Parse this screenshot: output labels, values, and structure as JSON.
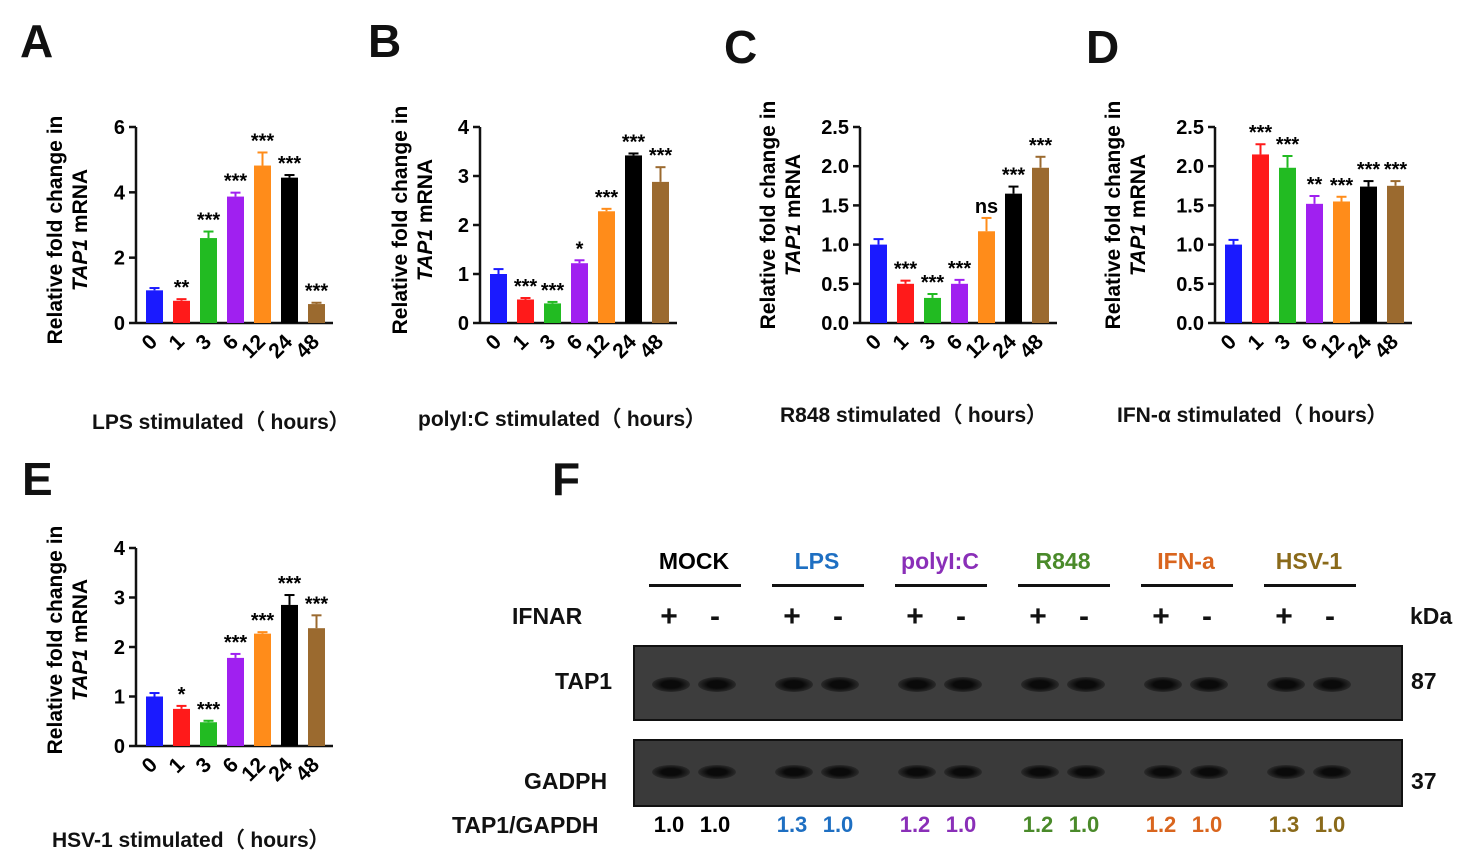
{
  "chart_data": [
    {
      "type": "bar",
      "panel": "A",
      "ylabel_line1": "Relative fold change in",
      "ylabel_gene": "TAP1",
      "ylabel_suffix": " mRNA",
      "xlabel": "LPS stimulated（ hours）",
      "categories": [
        "0",
        "1",
        "3",
        "6",
        "12",
        "24",
        "48"
      ],
      "values": [
        1.0,
        0.68,
        2.6,
        3.87,
        4.82,
        4.45,
        0.58
      ],
      "errors": [
        0.07,
        0.05,
        0.2,
        0.12,
        0.4,
        0.08,
        0.04
      ],
      "significance": [
        "",
        "**",
        "***",
        "***",
        "***",
        "***",
        "***"
      ],
      "ylim": [
        0,
        6
      ],
      "yticks": [
        "0",
        "2",
        "4",
        "6"
      ]
    },
    {
      "type": "bar",
      "panel": "B",
      "ylabel_line1": "Relative fold change in",
      "ylabel_gene": "TAP1",
      "ylabel_suffix": " mRNA",
      "xlabel": "polyI:C stimulated（ hours）",
      "categories": [
        "0",
        "1",
        "3",
        "6",
        "12",
        "24",
        "48"
      ],
      "values": [
        1.0,
        0.48,
        0.4,
        1.22,
        2.28,
        3.42,
        2.88
      ],
      "errors": [
        0.1,
        0.03,
        0.03,
        0.06,
        0.05,
        0.04,
        0.3
      ],
      "significance": [
        "",
        "***",
        "***",
        "*",
        "***",
        "***",
        "***"
      ],
      "ylim": [
        0,
        4
      ],
      "yticks": [
        "0",
        "1",
        "2",
        "3",
        "4"
      ]
    },
    {
      "type": "bar",
      "panel": "C",
      "ylabel_line1": "Relative fold change in",
      "ylabel_gene": "TAP1",
      "ylabel_suffix": " mRNA",
      "xlabel": "R848 stimulated（ hours）",
      "categories": [
        "0",
        "1",
        "3",
        "6",
        "12",
        "24",
        "48"
      ],
      "values": [
        1.0,
        0.5,
        0.32,
        0.5,
        1.17,
        1.65,
        1.98
      ],
      "errors": [
        0.07,
        0.04,
        0.05,
        0.05,
        0.17,
        0.09,
        0.14
      ],
      "significance": [
        "",
        "***",
        "***",
        "***",
        "ns",
        "***",
        "***"
      ],
      "ylim": [
        0,
        2.5
      ],
      "yticks": [
        "0.0",
        "0.5",
        "1.0",
        "1.5",
        "2.0",
        "2.5"
      ]
    },
    {
      "type": "bar",
      "panel": "D",
      "ylabel_line1": "Relative fold change in",
      "ylabel_gene": "TAP1",
      "ylabel_suffix": " mRNA",
      "xlabel": "IFN-α stimulated（ hours）",
      "categories": [
        "0",
        "1",
        "3",
        "6",
        "12",
        "24",
        "48"
      ],
      "values": [
        1.0,
        2.15,
        1.98,
        1.52,
        1.55,
        1.74,
        1.75
      ],
      "errors": [
        0.06,
        0.13,
        0.15,
        0.1,
        0.06,
        0.07,
        0.06
      ],
      "significance": [
        "",
        "***",
        "***",
        "**",
        "***",
        "***",
        "***"
      ],
      "ylim": [
        0,
        2.5
      ],
      "yticks": [
        "0.0",
        "0.5",
        "1.0",
        "1.5",
        "2.0",
        "2.5"
      ]
    },
    {
      "type": "bar",
      "panel": "E",
      "ylabel_line1": "Relative fold change in",
      "ylabel_gene": "TAP1",
      "ylabel_suffix": " mRNA",
      "xlabel": "HSV-1 stimulated（ hours）",
      "categories": [
        "0",
        "1",
        "3",
        "6",
        "12",
        "24",
        "48"
      ],
      "values": [
        1.0,
        0.75,
        0.48,
        1.78,
        2.27,
        2.85,
        2.38
      ],
      "errors": [
        0.07,
        0.06,
        0.03,
        0.08,
        0.03,
        0.2,
        0.26
      ],
      "significance": [
        "",
        "*",
        "***",
        "***",
        "***",
        "***",
        "***"
      ],
      "ylim": [
        0,
        4
      ],
      "yticks": [
        "0",
        "1",
        "2",
        "3",
        "4"
      ]
    }
  ],
  "bar_colors": [
    "#1a1aff",
    "#ff1a1a",
    "#22bb22",
    "#a020f0",
    "#ff8c1a",
    "#000000",
    "#9b6a2f"
  ],
  "western_blot": {
    "panel": "F",
    "groups": [
      {
        "label": "MOCK",
        "color": "#000000"
      },
      {
        "label": "LPS",
        "color": "#1e6fc2"
      },
      {
        "label": "polyI:C",
        "color": "#8a2fb8"
      },
      {
        "label": "R848",
        "color": "#4a8a2a"
      },
      {
        "label": "IFN-a",
        "color": "#d9651e"
      },
      {
        "label": "HSV-1",
        "color": "#8a6a1a"
      }
    ],
    "ifnar_label": "IFNAR",
    "plus": "+",
    "minus": "-",
    "kda_label": "kDa",
    "tap1_label": "TAP1",
    "tap1_kda": "87",
    "gapdh_label": "GADPH",
    "gapdh_kda": "37",
    "ratio_label": "TAP1/GAPDH",
    "ratios": [
      "1.0",
      "1.0",
      "1.3",
      "1.0",
      "1.2",
      "1.0",
      "1.2",
      "1.0",
      "1.2",
      "1.0",
      "1.3",
      "1.0"
    ]
  }
}
